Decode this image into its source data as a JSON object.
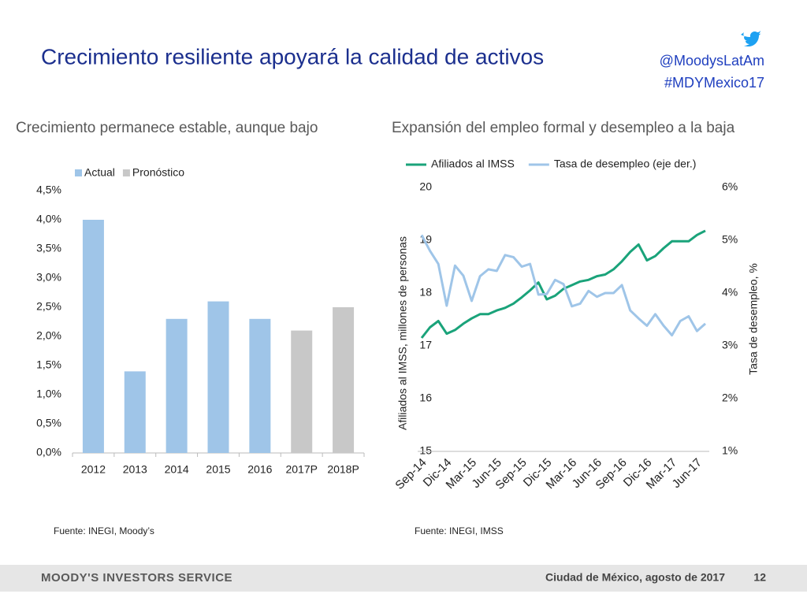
{
  "header": {
    "title": "Crecimiento resiliente apoyará la calidad de activos",
    "handle": "@MoodysLatAm",
    "hashtag": "#MDYMexico17"
  },
  "footer": {
    "brand": "MOODY'S INVESTORS SERVICE",
    "place_date": "Ciudad de México, agosto de 2017",
    "page": "12"
  },
  "chart_data": [
    {
      "type": "bar",
      "title": "Crecimiento permanece estable, aunque bajo",
      "source": "Fuente: INEGI, Moody’s",
      "categories": [
        "2012",
        "2013",
        "2014",
        "2015",
        "2016",
        "2017P",
        "2018P"
      ],
      "series": [
        {
          "name": "Actual",
          "color": "#9fc5e8",
          "values": [
            4.0,
            1.4,
            2.3,
            2.6,
            2.3,
            null,
            null
          ]
        },
        {
          "name": "Pronóstico",
          "color": "#c8c8c8",
          "values": [
            null,
            null,
            null,
            null,
            null,
            2.1,
            2.5
          ]
        }
      ],
      "ylim": [
        0,
        4.5
      ],
      "yticks": [
        {
          "value": 0,
          "label": "0,0%"
        },
        {
          "value": 0.5,
          "label": "0,5%"
        },
        {
          "value": 1,
          "label": "1,0%"
        },
        {
          "value": 1.5,
          "label": "1,5%"
        },
        {
          "value": 2,
          "label": "2,0%"
        },
        {
          "value": 2.5,
          "label": "2,5%"
        },
        {
          "value": 3,
          "label": "3,0%"
        },
        {
          "value": 3.5,
          "label": "3,5%"
        },
        {
          "value": 4,
          "label": "4,0%"
        },
        {
          "value": 4.5,
          "label": "4,5%"
        }
      ],
      "legend": "top"
    },
    {
      "type": "line",
      "title": "Expansión del empleo formal y desempleo a la baja",
      "source": "Fuente: INEGI, IMSS",
      "y_label": "Afiliados al IMSS, millones de personas",
      "y2_label": "Tasa de desempleo, %",
      "categories": [
        "Sep-14",
        null,
        null,
        "Dic-14",
        null,
        null,
        "Mar-15",
        null,
        null,
        "Jun-15",
        null,
        null,
        "Sep-15",
        null,
        null,
        "Dic-15",
        null,
        null,
        "Mar-16",
        null,
        null,
        "Jun-16",
        null,
        null,
        "Sep-16",
        null,
        null,
        "Dic-16",
        null,
        null,
        "Mar-17",
        null,
        null,
        "Jun-17",
        null
      ],
      "series": [
        {
          "name": "Afiliados al IMSS",
          "color": "#1aa37a",
          "values": [
            17.15,
            17.35,
            17.47,
            17.23,
            17.3,
            17.42,
            17.52,
            17.6,
            17.6,
            17.67,
            17.72,
            17.8,
            17.92,
            18.05,
            18.2,
            17.88,
            17.95,
            18.08,
            18.15,
            18.22,
            18.25,
            18.32,
            18.35,
            18.45,
            18.6,
            18.78,
            18.92,
            18.62,
            18.7,
            18.85,
            18.98,
            18.98,
            18.98,
            19.1,
            19.18
          ]
        },
        {
          "name": "Tasa de desempleo (eje der.)",
          "color": "#9fc5e8",
          "axis": "y2",
          "values": [
            5.1,
            4.8,
            4.55,
            3.76,
            4.52,
            4.33,
            3.85,
            4.32,
            4.45,
            4.42,
            4.72,
            4.68,
            4.5,
            4.55,
            3.97,
            3.98,
            4.25,
            4.17,
            3.75,
            3.8,
            4.04,
            3.93,
            4.0,
            4.0,
            4.15,
            3.67,
            3.52,
            3.38,
            3.6,
            3.38,
            3.2,
            3.47,
            3.56,
            3.28,
            3.42
          ]
        }
      ],
      "ylim": [
        15,
        20
      ],
      "yticks": [
        15,
        16,
        17,
        18,
        19,
        20
      ],
      "y2lim": [
        1,
        6
      ],
      "y2ticks": [
        {
          "value": 1,
          "label": "1%"
        },
        {
          "value": 2,
          "label": "2%"
        },
        {
          "value": 3,
          "label": "3%"
        },
        {
          "value": 4,
          "label": "4%"
        },
        {
          "value": 5,
          "label": "5%"
        },
        {
          "value": 6,
          "label": "6%"
        }
      ],
      "legend": "top"
    }
  ]
}
